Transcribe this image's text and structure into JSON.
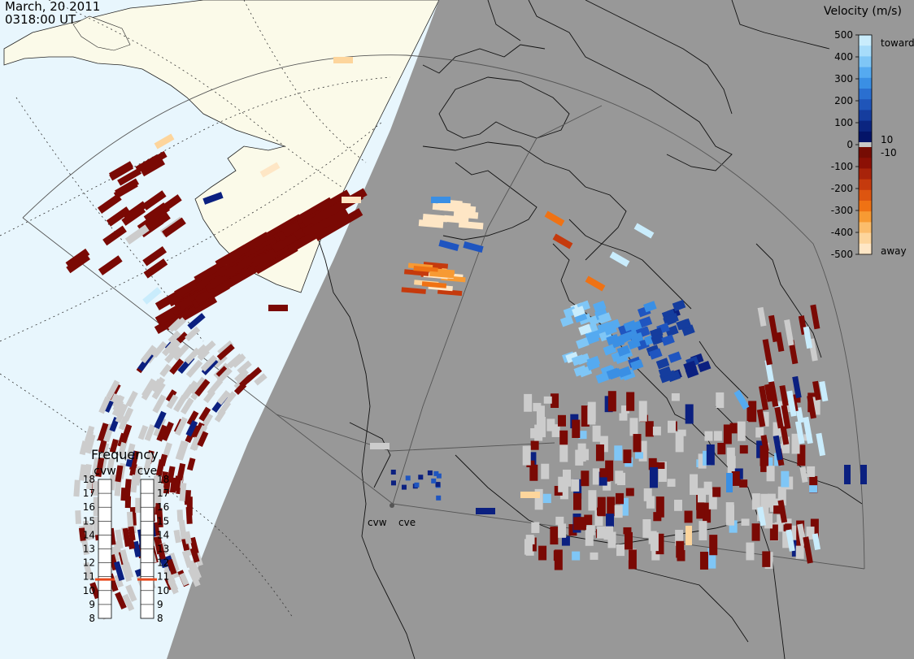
{
  "header": {
    "date": "March, 20 2011",
    "time": "0318:00 UT"
  },
  "velocity_legend": {
    "title": "Velocity (m/s)",
    "ticks": [
      "500",
      "400",
      "300",
      "200",
      "100",
      "0",
      "-100",
      "-200",
      "-300",
      "-400",
      "-500"
    ],
    "gap_upper_label": "10",
    "gap_lower_label": "-10",
    "toward_label": "toward",
    "away_label": "away",
    "colors_toward": [
      "#c9ecfc",
      "#a7dcfa",
      "#7fc6f6",
      "#55aaf0",
      "#3a8fe4",
      "#2a6fd0",
      "#1f55b9",
      "#153d9e",
      "#0b2580",
      "#041468"
    ],
    "colors_away": [
      "#760c04",
      "#8c1005",
      "#a8230a",
      "#c53a0d",
      "#dd5510",
      "#ef7214",
      "#f79a33",
      "#fbbd6c",
      "#fdd59c",
      "#fee6c5"
    ],
    "gap_color": "#c9c9c9"
  },
  "frequency_panel": {
    "title": "Frequency",
    "radars": [
      {
        "name": "cvw",
        "value_mhz": 10.8
      },
      {
        "name": "cve",
        "value_mhz": 10.8
      }
    ],
    "scale": [
      "18",
      "17",
      "16",
      "15",
      "14",
      "13",
      "12",
      "11",
      "10",
      "9",
      "8"
    ],
    "marker_color": "#e8481c"
  },
  "radar_sites": [
    {
      "name": "cvw"
    },
    {
      "name": "cve"
    }
  ],
  "map_colors": {
    "ocean": "#e8f6fd",
    "land_day": "#fbfae9",
    "night_shade": "#989898",
    "ground_scatter": "#cccccc"
  }
}
